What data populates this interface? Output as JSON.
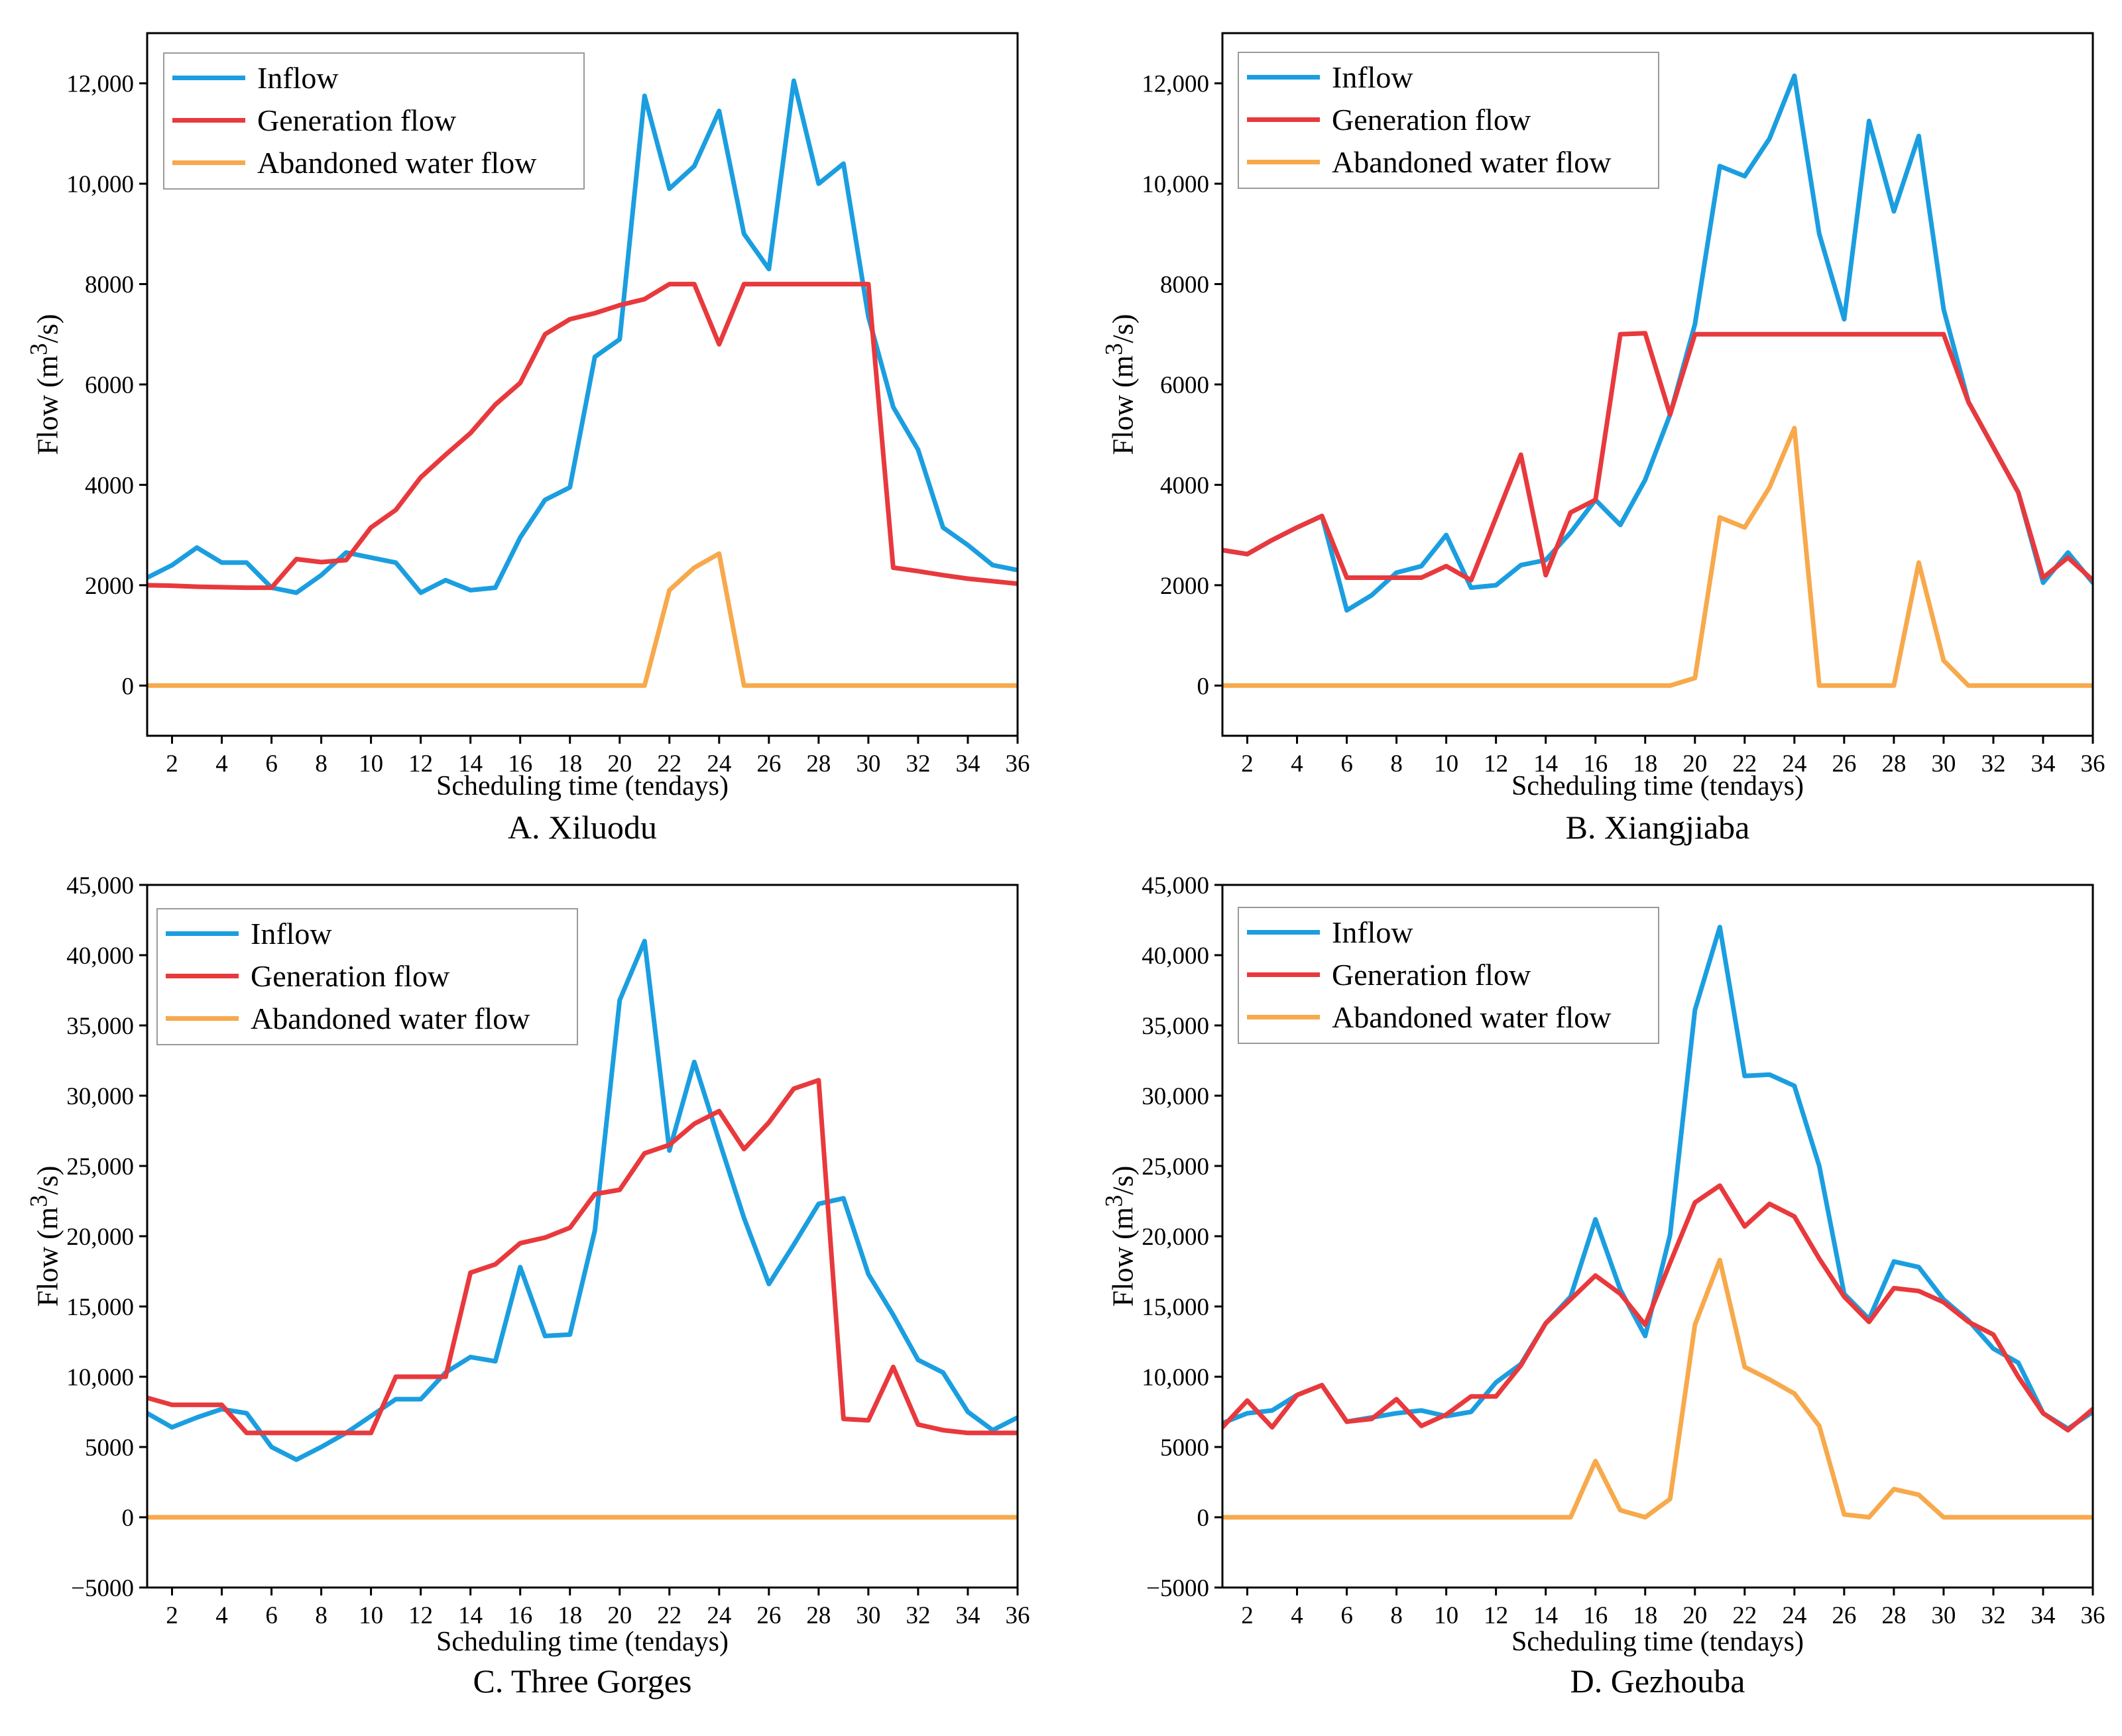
{
  "colors": {
    "inflow": "#1b9ee0",
    "generation": "#e8393d",
    "abandoned": "#f7a94c",
    "axis": "#000000"
  },
  "chart_data": [
    {
      "type": "line",
      "caption": "A. Xiluodu",
      "xlabel": "Scheduling time (tendays)",
      "ylabel": "Flow (m",
      "ylabel_sup": "3",
      "ylabel_tail": "/s)",
      "xlim": [
        1,
        36
      ],
      "ylim": [
        -1000,
        13000
      ],
      "yticks": [
        0,
        2000,
        4000,
        6000,
        8000,
        10000,
        12000
      ],
      "ytick_labels": [
        "0",
        "2000",
        "4000",
        "6000",
        "8000",
        "10,000",
        "12,000"
      ],
      "xticks": [
        2,
        4,
        6,
        8,
        10,
        12,
        14,
        16,
        18,
        20,
        22,
        24,
        26,
        28,
        30,
        32,
        34,
        36
      ],
      "legend": [
        "Inflow",
        "Generation flow",
        "Abandoned water flow"
      ],
      "series": [
        {
          "name": "Inflow",
          "values": [
            2150,
            2400,
            2750,
            2450,
            2450,
            1950,
            1850,
            2200,
            2650,
            2550,
            2450,
            1850,
            2100,
            1900,
            1950,
            2950,
            3700,
            3950,
            6550,
            6900,
            11750,
            9900,
            10350,
            11450,
            9000,
            8300,
            12050,
            10000,
            10400,
            7350,
            5550,
            4700,
            3150,
            2800,
            2400,
            2300
          ]
        },
        {
          "name": "Generation flow",
          "values": [
            2000,
            1990,
            1970,
            1960,
            1950,
            1950,
            2520,
            2460,
            2500,
            3150,
            3500,
            4150,
            4600,
            5030,
            5600,
            6030,
            7000,
            7300,
            7420,
            7580,
            7700,
            8000,
            8000,
            6800,
            8000,
            8000,
            8000,
            8000,
            8000,
            8000,
            2350,
            2280,
            2200,
            2130,
            2080,
            2030
          ]
        },
        {
          "name": "Abandoned water flow",
          "values": [
            0,
            0,
            0,
            0,
            0,
            0,
            0,
            0,
            0,
            0,
            0,
            0,
            0,
            0,
            0,
            0,
            0,
            0,
            0,
            0,
            0,
            1900,
            2350,
            2630,
            0,
            0,
            0,
            0,
            0,
            0,
            0,
            0,
            0,
            0,
            0,
            0
          ]
        }
      ]
    },
    {
      "type": "line",
      "caption": "B. Xiangjiaba",
      "xlabel": "Scheduling time (tendays)",
      "ylabel": "Flow (m",
      "ylabel_sup": "3",
      "ylabel_tail": "/s)",
      "xlim": [
        1,
        36
      ],
      "ylim": [
        -1000,
        13000
      ],
      "yticks": [
        0,
        2000,
        4000,
        6000,
        8000,
        10000,
        12000
      ],
      "ytick_labels": [
        "0",
        "2000",
        "4000",
        "6000",
        "8000",
        "10,000",
        "12,000"
      ],
      "xticks": [
        2,
        4,
        6,
        8,
        10,
        12,
        14,
        16,
        18,
        20,
        22,
        24,
        26,
        28,
        30,
        32,
        34,
        36
      ],
      "legend": [
        "Inflow",
        "Generation flow",
        "Abandoned water flow"
      ],
      "series": [
        {
          "name": "Inflow",
          "values": [
            2700,
            2620,
            2900,
            3150,
            3380,
            1500,
            1800,
            2250,
            2380,
            3000,
            1950,
            2000,
            2400,
            2500,
            3050,
            3700,
            3200,
            4100,
            5400,
            7200,
            10350,
            10150,
            10900,
            12150,
            9000,
            7300,
            11250,
            9450,
            10950,
            7500,
            5650,
            4750,
            3850,
            2050,
            2650,
            2050
          ]
        },
        {
          "name": "Generation flow",
          "values": [
            2700,
            2620,
            2900,
            3150,
            3380,
            2150,
            2150,
            2150,
            2150,
            2380,
            2100,
            3350,
            4600,
            2200,
            3450,
            3700,
            7000,
            7020,
            5400,
            7000,
            7000,
            7000,
            7000,
            7000,
            7000,
            7000,
            7000,
            7000,
            7000,
            7000,
            5650,
            4750,
            3850,
            2150,
            2550,
            2100
          ]
        },
        {
          "name": "Abandoned water flow",
          "values": [
            0,
            0,
            0,
            0,
            0,
            0,
            0,
            0,
            0,
            0,
            0,
            0,
            0,
            0,
            0,
            0,
            0,
            0,
            0,
            150,
            3350,
            3150,
            3950,
            5130,
            0,
            0,
            0,
            0,
            2450,
            500,
            0,
            0,
            0,
            0,
            0,
            0
          ]
        }
      ]
    },
    {
      "type": "line",
      "caption": "C. Three Gorges",
      "xlabel": "Scheduling time (tendays)",
      "ylabel": "Flow (m",
      "ylabel_sup": "3",
      "ylabel_tail": "/s)",
      "xlim": [
        1,
        36
      ],
      "ylim": [
        -5000,
        45000
      ],
      "yticks": [
        -5000,
        0,
        5000,
        10000,
        15000,
        20000,
        25000,
        30000,
        35000,
        40000,
        45000
      ],
      "ytick_labels": [
        "−5000",
        "0",
        "5000",
        "10,000",
        "15,000",
        "20,000",
        "25,000",
        "30,000",
        "35,000",
        "40,000",
        "45,000"
      ],
      "xticks": [
        2,
        4,
        6,
        8,
        10,
        12,
        14,
        16,
        18,
        20,
        22,
        24,
        26,
        28,
        30,
        32,
        34,
        36
      ],
      "legend": [
        "Inflow",
        "Generation flow",
        "Abandoned water flow"
      ],
      "series": [
        {
          "name": "Inflow",
          "values": [
            7400,
            6400,
            7100,
            7700,
            7400,
            5000,
            4100,
            5000,
            6000,
            7200,
            8400,
            8400,
            10300,
            11400,
            11100,
            17800,
            12900,
            13000,
            20400,
            36800,
            41000,
            26100,
            32400,
            26800,
            21300,
            16600,
            19400,
            22300,
            22700,
            17300,
            14400,
            11200,
            10300,
            7500,
            6200,
            7100
          ]
        },
        {
          "name": "Generation flow",
          "values": [
            8500,
            8000,
            8000,
            8000,
            6000,
            6000,
            6000,
            6000,
            6000,
            6000,
            10000,
            10000,
            10000,
            17400,
            18000,
            19500,
            19900,
            20600,
            23000,
            23300,
            25900,
            26500,
            28000,
            28900,
            26200,
            28100,
            30500,
            31100,
            7000,
            6900,
            10700,
            6600,
            6200,
            6000,
            6000,
            6000
          ]
        },
        {
          "name": "Abandoned water flow",
          "values": [
            0,
            0,
            0,
            0,
            0,
            0,
            0,
            0,
            0,
            0,
            0,
            0,
            0,
            0,
            0,
            0,
            0,
            0,
            0,
            0,
            0,
            0,
            0,
            0,
            0,
            0,
            0,
            0,
            0,
            0,
            0,
            0,
            0,
            0,
            0,
            0
          ]
        }
      ]
    },
    {
      "type": "line",
      "caption": "D. Gezhouba",
      "xlabel": "Scheduling time (tendays)",
      "ylabel": "Flow (m",
      "ylabel_sup": "3",
      "ylabel_tail": "/s)",
      "xlim": [
        1,
        36
      ],
      "ylim": [
        -5000,
        45000
      ],
      "yticks": [
        -5000,
        0,
        5000,
        10000,
        15000,
        20000,
        25000,
        30000,
        35000,
        40000,
        45000
      ],
      "ytick_labels": [
        "−5000",
        "0",
        "5000",
        "10,000",
        "15,000",
        "20,000",
        "25,000",
        "30,000",
        "35,000",
        "40,000",
        "45,000"
      ],
      "xticks": [
        2,
        4,
        6,
        8,
        10,
        12,
        14,
        16,
        18,
        20,
        22,
        24,
        26,
        28,
        30,
        32,
        34,
        36
      ],
      "legend": [
        "Inflow",
        "Generation flow",
        "Abandoned water flow"
      ],
      "series": [
        {
          "name": "Inflow",
          "values": [
            6700,
            7400,
            7600,
            8700,
            9400,
            6800,
            7100,
            7400,
            7600,
            7200,
            7500,
            9600,
            10900,
            13800,
            15700,
            21200,
            16200,
            12900,
            20100,
            36100,
            42000,
            31400,
            31500,
            30700,
            25000,
            15900,
            14100,
            18200,
            17800,
            15500,
            14000,
            12000,
            11000,
            7400,
            6300,
            7500
          ]
        },
        {
          "name": "Generation flow",
          "values": [
            6400,
            8300,
            6400,
            8700,
            9400,
            6800,
            7000,
            8400,
            6500,
            7300,
            8600,
            8600,
            10800,
            13800,
            15500,
            17200,
            15900,
            13700,
            18100,
            22400,
            23600,
            20700,
            22300,
            21400,
            18400,
            15700,
            13900,
            16300,
            16100,
            15300,
            13900,
            13000,
            10000,
            7400,
            6200,
            7700
          ]
        },
        {
          "name": "Abandoned water flow",
          "values": [
            0,
            0,
            0,
            0,
            0,
            0,
            0,
            0,
            0,
            0,
            0,
            0,
            0,
            0,
            0,
            4000,
            500,
            0,
            1300,
            13700,
            18300,
            10700,
            9800,
            8800,
            6500,
            200,
            0,
            2000,
            1600,
            0,
            0,
            0,
            0,
            0,
            0,
            0
          ]
        }
      ]
    }
  ]
}
